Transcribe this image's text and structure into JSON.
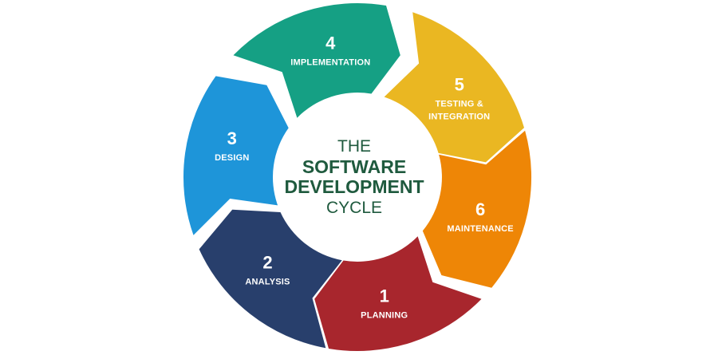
{
  "diagram": {
    "center": {
      "line1": "THE",
      "line2": "SOFTWARE",
      "line3": "DEVELOPMENT",
      "line4": "CYCLE",
      "text_color": "#1f5a3e"
    },
    "stages": [
      {
        "number": "1",
        "label_lines": [
          "PLANNING"
        ],
        "color": "#a8262d"
      },
      {
        "number": "2",
        "label_lines": [
          "ANALYSIS"
        ],
        "color": "#283f6c"
      },
      {
        "number": "3",
        "label_lines": [
          "DESIGN"
        ],
        "color": "#1e95d9"
      },
      {
        "number": "4",
        "label_lines": [
          "IMPLEMENTATION"
        ],
        "color": "#15a084"
      },
      {
        "number": "5",
        "label_lines": [
          "TESTING &",
          "INTEGRATION"
        ],
        "color": "#eab722"
      },
      {
        "number": "6",
        "label_lines": [
          "MAINTENANCE"
        ],
        "color": "#ee8606"
      }
    ]
  }
}
